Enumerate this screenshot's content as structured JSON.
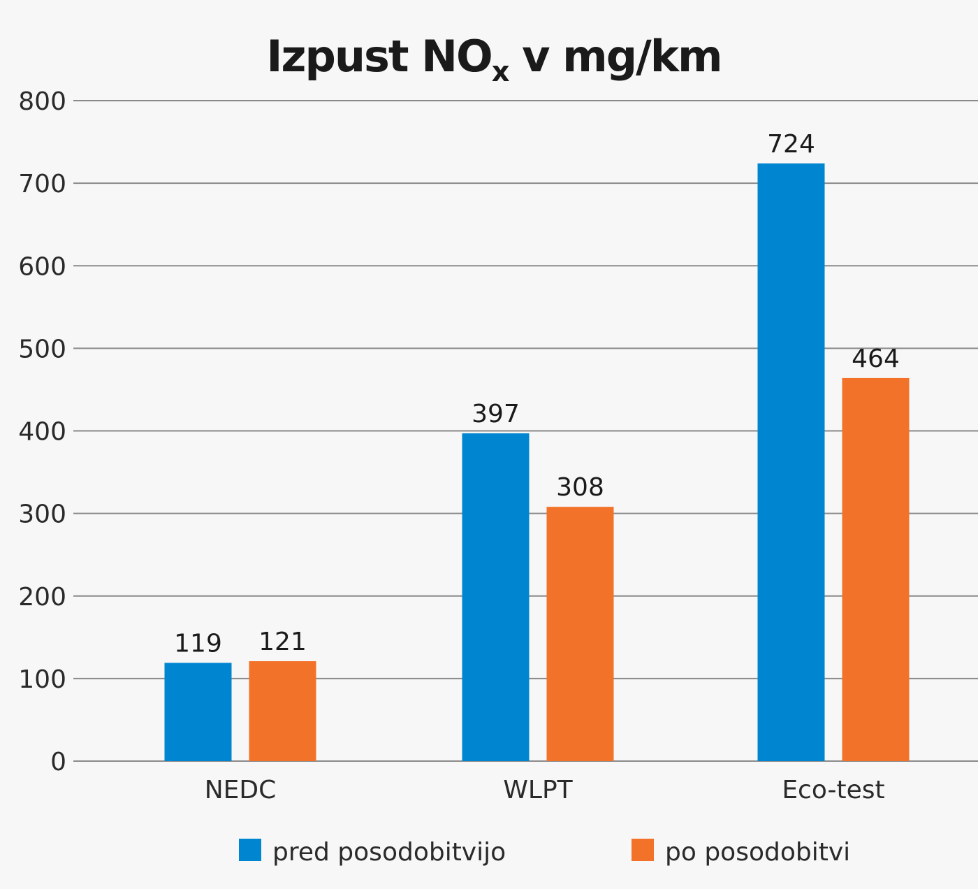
{
  "chart_data": {
    "type": "bar",
    "title": "Izpust NO",
    "title_subscript": "x",
    "title_suffix": " v mg/km",
    "xlabel": "",
    "ylabel": "",
    "categories": [
      "NEDC",
      "WLPT",
      "Eco-test"
    ],
    "series": [
      {
        "name": "pred posodobitvijo",
        "color": "#0086d1",
        "values": [
          119,
          397,
          724
        ]
      },
      {
        "name": "po posodobitvi",
        "color": "#f3722a",
        "values": [
          121,
          308,
          464
        ]
      }
    ],
    "ylim": [
      0,
      800
    ],
    "yticks": [
      0,
      100,
      200,
      300,
      400,
      500,
      600,
      700,
      800
    ],
    "grid": true,
    "legend_position": "bottom"
  }
}
